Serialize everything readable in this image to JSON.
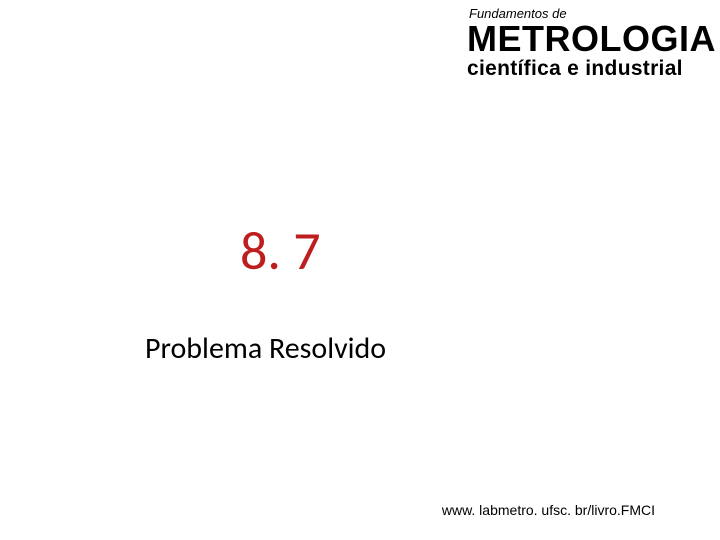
{
  "header": {
    "pretitle": "Fundamentos de",
    "title": "METROLOGIA",
    "subtitle": "científica e industrial",
    "pretitle_fontsize": 13,
    "title_fontsize": 36,
    "subtitle_fontsize": 21,
    "color": "#000000"
  },
  "main": {
    "section_number": "8. 7",
    "section_number_color": "#be1e1e",
    "section_number_fontsize": 54,
    "subtitle": "Problema Resolvido",
    "subtitle_fontsize": 30,
    "subtitle_color": "#000000"
  },
  "footer": {
    "text": "www. labmetro. ufsc. br/livro.FMCI",
    "fontsize": 14,
    "color": "#000000"
  },
  "background_color": "#ffffff",
  "slide_width": 720,
  "slide_height": 540
}
